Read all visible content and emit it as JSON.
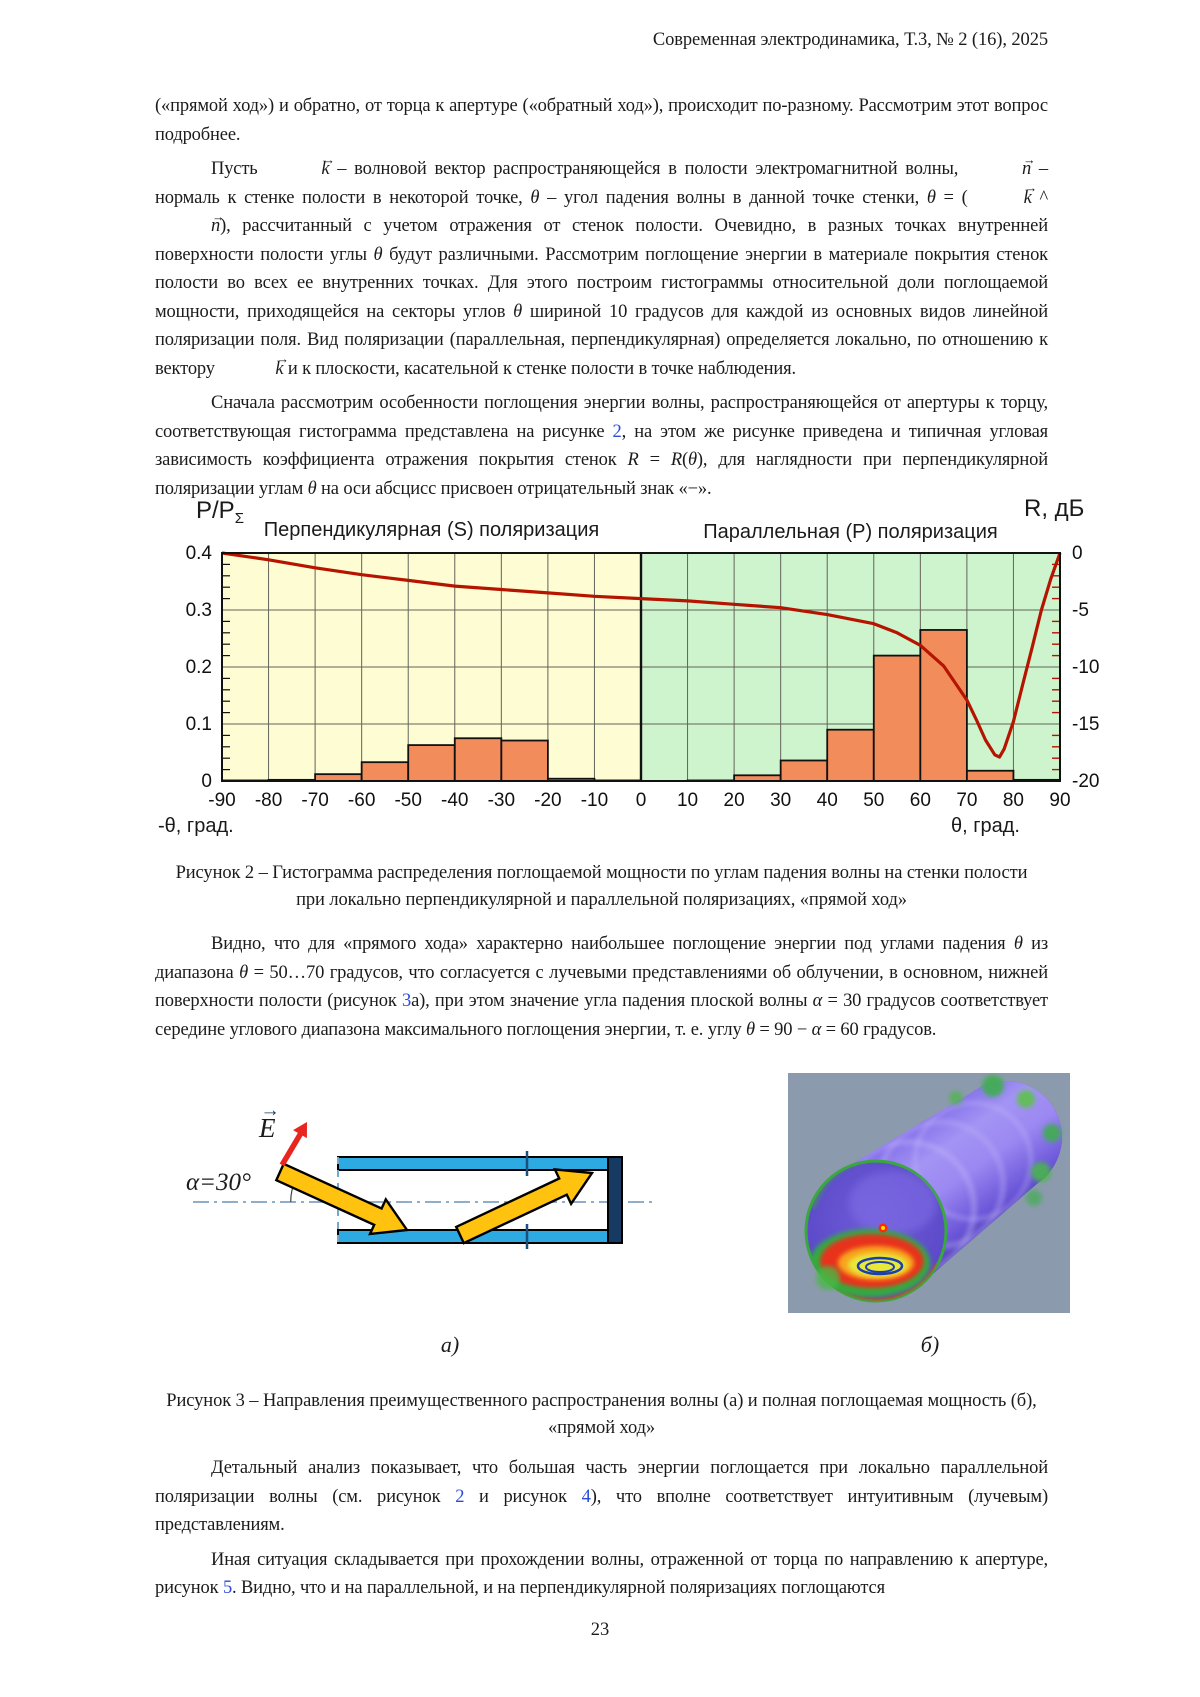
{
  "header": {
    "journal_line": "Современная электродинамика, Т.3, № 2 (16), 2025"
  },
  "page_number": "23",
  "paragraphs": {
    "p1": {
      "indent": false,
      "segments": [
        {
          "text": "(«прямой ход») и обратно, от торца к апертуре («обратный ход»), происходит по-разному. Рассмотрим этот вопрос подробнее."
        }
      ]
    },
    "p2": {
      "indent": true,
      "segments": [
        {
          "text": "Пусть "
        },
        {
          "style": "vec",
          "text": "k"
        },
        {
          "text": " – волновой вектор распространяющейся в полости электромагнитной волны, "
        },
        {
          "style": "vec",
          "text": "n"
        },
        {
          "text": " – нормаль к стенке полости в некоторой точке, "
        },
        {
          "style": "math",
          "text": "θ"
        },
        {
          "text": " – угол падения волны в данной точке стенки, "
        },
        {
          "style": "math",
          "text": "θ"
        },
        {
          "text": " = ("
        },
        {
          "style": "vec",
          "text": "k"
        },
        {
          "text": " ^ "
        },
        {
          "style": "vec",
          "text": "n"
        },
        {
          "text": "), рассчитанный с учетом отражения от стенок полости. Очевидно, в разных точках внутренней поверхности полости углы "
        },
        {
          "style": "math",
          "text": "θ"
        },
        {
          "text": " будут различными. Рассмотрим поглощение энергии в материале покрытия стенок полости во всех ее внутренних точках. Для этого построим гистограммы относительной доли поглощаемой мощности, приходящейся на секторы углов "
        },
        {
          "style": "math",
          "text": "θ"
        },
        {
          "text": " шириной 10 градусов для каждой из основных видов линейной поляризации поля. Вид поляризации (параллельная, перпендикулярная) определяется локально, по отношению к вектору "
        },
        {
          "style": "vec",
          "text": "k"
        },
        {
          "text": " и к плоскости, касательной к стенке полости в точке наблюдения."
        }
      ]
    },
    "p3": {
      "indent": true,
      "segments": [
        {
          "text": "Сначала рассмотрим особенности поглощения энергии волны, распространяющейся от апертуры к торцу, соответствующая гистограмма представлена на рисунке "
        },
        {
          "style": "link",
          "text": "2"
        },
        {
          "text": ", на этом же рисунке приведена и типичная угловая зависимость коэффициента отражения покрытия стенок "
        },
        {
          "style": "math",
          "text": "R"
        },
        {
          "text": " = "
        },
        {
          "style": "math",
          "text": "R"
        },
        {
          "text": "("
        },
        {
          "style": "math",
          "text": "θ"
        },
        {
          "text": "), для наглядности при перпендикулярной поляризации углам "
        },
        {
          "style": "math",
          "text": "θ"
        },
        {
          "text": " на оси абсцисс присвоен отрицательный знак «−»."
        }
      ]
    },
    "p4": {
      "indent": true,
      "segments": [
        {
          "text": "Видно, что для «прямого хода» характерно наибольшее поглощение энергии под углами падения "
        },
        {
          "style": "math",
          "text": "θ"
        },
        {
          "text": " из диапазона "
        },
        {
          "style": "math",
          "text": "θ"
        },
        {
          "text": " = 50…70 градусов, что согласуется с лучевыми представлениями об облучении, в основном, нижней поверхности полости (рисунок "
        },
        {
          "style": "link",
          "text": "3"
        },
        {
          "text": "а), при этом значение угла падения плоской волны "
        },
        {
          "style": "math",
          "text": "α"
        },
        {
          "text": " = 30 градусов соответствует середине углового диапазона максимального поглощения энергии, т. е. углу "
        },
        {
          "style": "math",
          "text": "θ"
        },
        {
          "text": " = 90 − "
        },
        {
          "style": "math",
          "text": "α"
        },
        {
          "text": " = 60 градусов."
        }
      ]
    },
    "p5": {
      "indent": true,
      "segments": [
        {
          "text": "Детальный анализ показывает, что большая часть энергии поглощается при локально параллельной поляризации волны (см. рисунок "
        },
        {
          "style": "link",
          "text": "2"
        },
        {
          "text": " и рисунок "
        },
        {
          "style": "link",
          "text": "4"
        },
        {
          "text": "), что вполне соответствует интуитивным (лучевым) представлениям."
        }
      ]
    },
    "p6": {
      "indent": true,
      "segments": [
        {
          "text": "Иная ситуация складывается при прохождении волны, отраженной от торца по направлению к апертуре, рисунок "
        },
        {
          "style": "link",
          "text": "5"
        },
        {
          "text": ". Видно, что и на параллельной, и на перпендикулярной поляризациях поглощаются"
        }
      ]
    }
  },
  "figure2": {
    "caption_line1": "Рисунок 2 – Гистограмма распределения поглощаемой мощности по углам падения волны на стенки полости",
    "caption_line2": "при локально перпендикулярной и параллельной поляризациях, «прямой ход»"
  },
  "chart_data": {
    "type": "bar",
    "left_axis_title": "P/P",
    "left_axis_title_sub": "Σ",
    "right_axis_title": "R, дБ",
    "x_axis_label_negative": "-θ, град.",
    "x_axis_label_positive": "θ, град.",
    "regions": [
      {
        "label": "Перпендикулярная (S) поляризация",
        "theta_range": [
          -90,
          0
        ],
        "bg_color": "#FEFCD2"
      },
      {
        "label": "Параллельная (P) поляризация",
        "theta_range": [
          0,
          90
        ],
        "bg_color": "#CDF4CD"
      }
    ],
    "x_ticks": [
      -90,
      -80,
      -70,
      -60,
      -50,
      -40,
      -30,
      -20,
      -10,
      0,
      10,
      20,
      30,
      40,
      50,
      60,
      70,
      80,
      90
    ],
    "y_left_axis": {
      "min": 0,
      "max": 0.4,
      "label_values": [
        0,
        0.1,
        0.2,
        0.3,
        0.4
      ]
    },
    "y_right_axis": {
      "min": -20,
      "max": 0,
      "label_values": [
        0,
        -5,
        -10,
        -15,
        -20
      ]
    },
    "bars": {
      "color": "#F28C5A",
      "bin_width_deg": 10,
      "first_bin_start_deg": -90,
      "values_p_rel": [
        0.001,
        0.002,
        0.012,
        0.033,
        0.063,
        0.075,
        0.071,
        0.004,
        0.001,
        0.0,
        0.001,
        0.01,
        0.036,
        0.09,
        0.22,
        0.265,
        0.018,
        0.002
      ]
    },
    "reflection_curve": {
      "name": "R(θ)",
      "color": "#B51500",
      "units": "дБ",
      "points_theta_db": [
        [
          -90,
          0
        ],
        [
          -80,
          -0.6
        ],
        [
          -70,
          -1.3
        ],
        [
          -60,
          -1.9
        ],
        [
          -50,
          -2.4
        ],
        [
          -40,
          -2.9
        ],
        [
          -30,
          -3.2
        ],
        [
          -20,
          -3.5
        ],
        [
          -10,
          -3.8
        ],
        [
          0,
          -4.0
        ],
        [
          10,
          -4.2
        ],
        [
          20,
          -4.5
        ],
        [
          30,
          -4.8
        ],
        [
          40,
          -5.4
        ],
        [
          50,
          -6.2
        ],
        [
          55,
          -7.0
        ],
        [
          60,
          -8.1
        ],
        [
          65,
          -9.9
        ],
        [
          70,
          -12.9
        ],
        [
          72,
          -14.6
        ],
        [
          74,
          -16.4
        ],
        [
          76,
          -17.7
        ],
        [
          77,
          -17.9
        ],
        [
          78,
          -17.2
        ],
        [
          80,
          -14.8
        ],
        [
          82,
          -11.5
        ],
        [
          84,
          -8.3
        ],
        [
          86,
          -5.0
        ],
        [
          88,
          -2.3
        ],
        [
          90,
          0
        ]
      ]
    }
  },
  "figure3": {
    "label_a": "а)",
    "label_b": "б)",
    "a": {
      "alpha_label": "α=30°",
      "e_label": "E"
    },
    "caption_line1": "Рисунок 3 – Направления преимущественного распространения волны (а) и полная поглощаемая мощность (б),",
    "caption_line2": "«прямой ход»"
  }
}
